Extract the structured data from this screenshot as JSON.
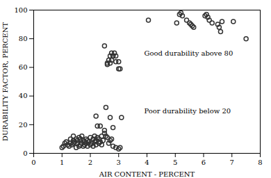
{
  "chart_data": {
    "type": "scatter",
    "xlabel": "AIR CONTENT - PERCENT",
    "ylabel": "DURABILITY FACTOR, PERCENT",
    "xlim": [
      0,
      8
    ],
    "ylim": [
      0,
      100
    ],
    "xticks": [
      0,
      1,
      2,
      3,
      4,
      5,
      6,
      7,
      8
    ],
    "yticks": [
      0,
      20,
      40,
      60,
      80,
      100
    ],
    "color": "#333333",
    "marker": "o",
    "annotations": [
      {
        "text": "Good durability above 80",
        "x": 3.9,
        "y": 68
      },
      {
        "text": "Poor durability below 20",
        "x": 3.9,
        "y": 28
      }
    ],
    "x": [
      1.0,
      1.05,
      1.1,
      1.15,
      1.2,
      1.25,
      1.3,
      1.3,
      1.35,
      1.4,
      1.4,
      1.4,
      1.45,
      1.5,
      1.5,
      1.55,
      1.55,
      1.6,
      1.6,
      1.65,
      1.65,
      1.7,
      1.7,
      1.75,
      1.75,
      1.8,
      1.8,
      1.85,
      1.85,
      1.9,
      1.9,
      1.95,
      2.0,
      2.0,
      2.05,
      2.1,
      2.1,
      2.15,
      2.15,
      2.2,
      2.2,
      2.25,
      2.3,
      2.3,
      2.35,
      2.4,
      2.4,
      2.45,
      2.5,
      2.5,
      2.55,
      2.6,
      2.65,
      2.7,
      2.75,
      2.8,
      2.9,
      3.0,
      3.05,
      2.2,
      2.25,
      2.35,
      2.5,
      2.6,
      2.65,
      2.7,
      2.75,
      2.8,
      2.9,
      3.0,
      3.1,
      2.55,
      2.7,
      2.8,
      2.6,
      2.7,
      2.75,
      2.8,
      2.85,
      2.9,
      3.0,
      3.05,
      4.05,
      5.05,
      5.15,
      5.2,
      5.25,
      5.4,
      5.5,
      5.55,
      5.6,
      5.65,
      6.05,
      6.1,
      6.15,
      6.2,
      6.3,
      6.5,
      6.55,
      6.6,
      6.65,
      7.05,
      7.5
    ],
    "values": [
      4,
      5,
      7,
      8,
      6,
      5,
      10,
      7,
      6,
      9,
      12,
      7,
      8,
      10,
      4,
      9,
      7,
      11,
      5,
      6,
      10,
      12,
      7,
      5,
      9,
      8,
      6,
      7,
      10,
      9,
      5,
      8,
      11,
      6,
      7,
      10,
      5,
      8,
      12,
      6,
      9,
      11,
      7,
      10,
      8,
      6,
      12,
      9,
      14,
      16,
      12,
      11,
      7,
      9,
      10,
      5,
      4,
      3,
      4,
      26,
      19,
      19,
      75,
      63,
      65,
      68,
      70,
      68,
      64,
      59,
      25,
      32,
      25,
      18,
      62,
      63,
      65,
      68,
      70,
      68,
      64,
      59,
      93,
      91,
      97,
      98,
      96,
      93,
      91,
      90,
      89,
      88,
      96,
      97,
      95,
      93,
      91,
      90,
      88,
      85,
      92,
      92,
      80
    ]
  }
}
